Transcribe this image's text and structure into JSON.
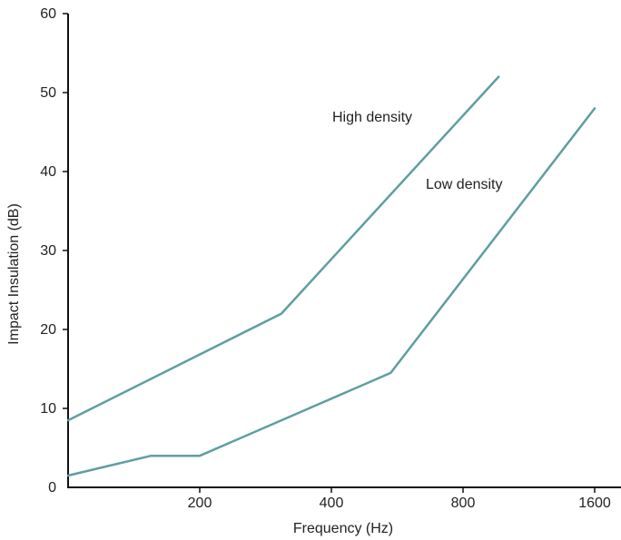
{
  "chart_data": {
    "type": "line",
    "xlabel": "Frequency (Hz)",
    "ylabel": "Impact Insulation (dB)",
    "x_tick_labels": [
      "200",
      "400",
      "800",
      "1600"
    ],
    "x_tick_positions": [
      1,
      2,
      3,
      4
    ],
    "xlim": [
      0,
      4.2
    ],
    "ylim": [
      0,
      60
    ],
    "y_ticks": [
      0,
      10,
      20,
      30,
      40,
      50,
      60
    ],
    "line_color": "#5f9ea0",
    "series": [
      {
        "name": "High density",
        "points": [
          [
            0,
            8.5
          ],
          [
            1.62,
            22
          ],
          [
            3.27,
            52
          ]
        ]
      },
      {
        "name": "Low density",
        "points": [
          [
            0,
            1.5
          ],
          [
            0.63,
            4
          ],
          [
            1.0,
            4
          ],
          [
            2.45,
            14.5
          ],
          [
            4.0,
            48
          ]
        ]
      }
    ]
  }
}
